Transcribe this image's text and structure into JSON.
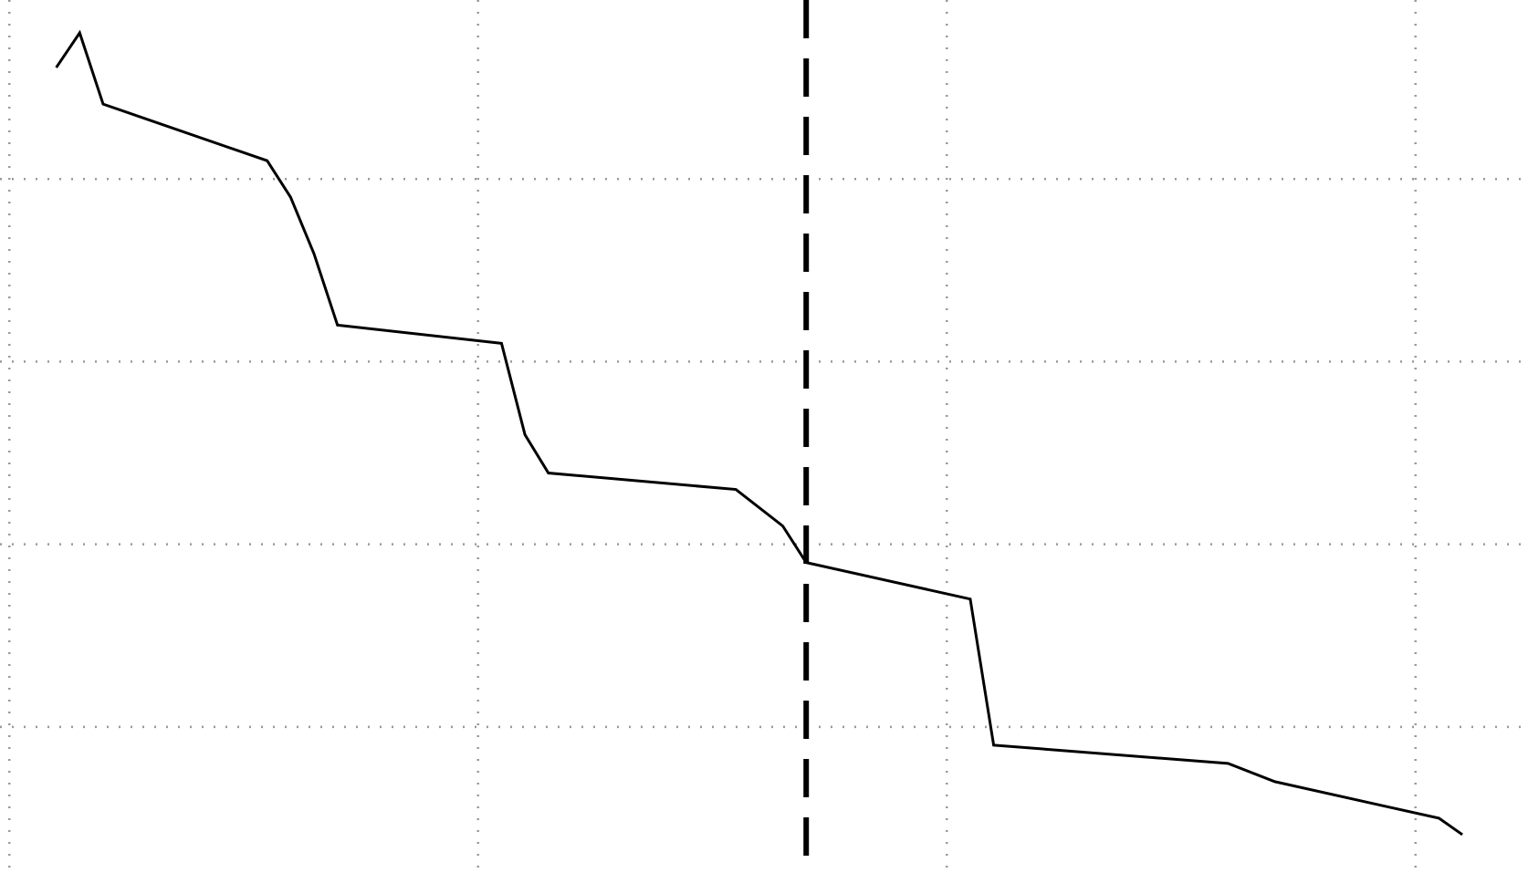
{
  "chart_data": {
    "type": "line",
    "x": [
      0.1,
      0.15,
      0.2,
      0.55,
      0.6,
      0.65,
      0.7,
      1.05,
      1.1,
      1.15,
      1.55,
      1.65,
      1.7,
      2.05,
      2.1,
      2.6,
      2.7,
      3.05,
      3.1
    ],
    "values": [
      4.61,
      4.8,
      4.41,
      4.1,
      3.9,
      3.59,
      3.2,
      3.1,
      2.6,
      2.39,
      2.3,
      2.1,
      1.9,
      1.7,
      0.9,
      0.8,
      0.7,
      0.5,
      0.41
    ],
    "color": "#000000",
    "xlim": [
      -0.02,
      3.24
    ],
    "ylim": [
      0.2,
      4.98
    ],
    "xticks": [
      0,
      1,
      2,
      3
    ],
    "yticks": [
      1,
      2,
      3,
      4
    ],
    "grid": true,
    "vline": 1.7
  }
}
